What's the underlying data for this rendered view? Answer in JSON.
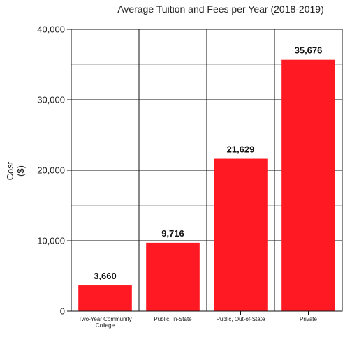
{
  "chart_data": {
    "type": "bar",
    "title": "Average Tuition and Fees per Year (2018-2019)",
    "xlabel": "",
    "ylabel": [
      "Cost",
      "($)"
    ],
    "categories": [
      [
        "Two-Year Community",
        "College"
      ],
      [
        "Public, In-State"
      ],
      [
        "Public, Out-of-State"
      ],
      [
        "Private"
      ]
    ],
    "values": [
      3660,
      9716,
      21629,
      35676
    ],
    "value_labels": [
      "3,660",
      "9,716",
      "21,629",
      "35,676"
    ],
    "ylim": [
      0,
      40000
    ],
    "yticks": [
      0,
      10000,
      20000,
      30000,
      40000
    ],
    "ytick_labels": [
      "0",
      "10,000",
      "20,000",
      "30,000",
      "40,000"
    ],
    "minor_grid_step": 5000,
    "grid": true,
    "bar_color": "#ff1a23"
  }
}
